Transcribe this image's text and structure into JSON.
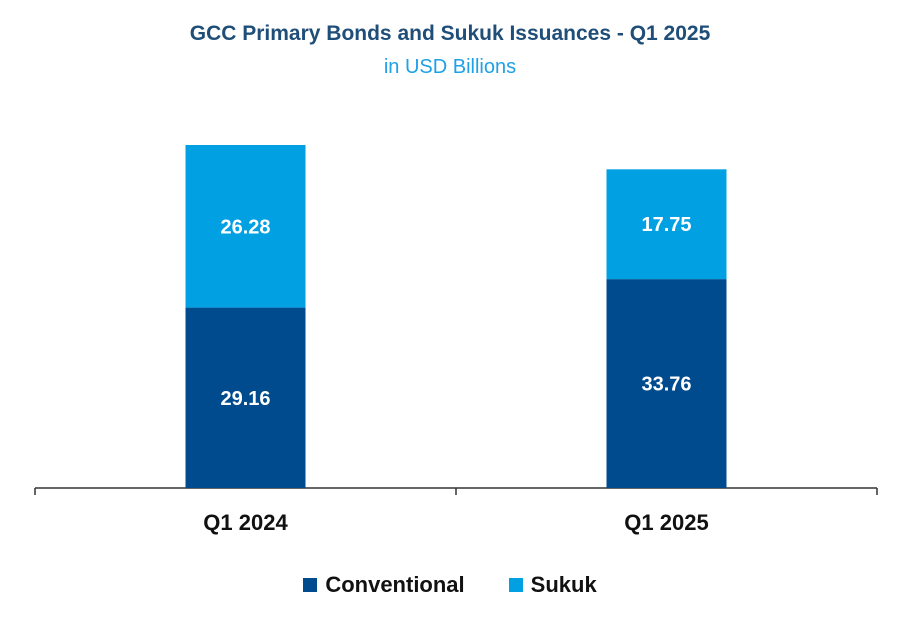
{
  "chart_data": {
    "type": "bar",
    "stacked": true,
    "title": "GCC Primary Bonds and Sukuk Issuances - Q1 2025",
    "subtitle": "in USD Billions",
    "categories": [
      "Q1 2024",
      "Q1 2025"
    ],
    "series": [
      {
        "name": "Conventional",
        "color": "#004b8d",
        "values": [
          29.16,
          33.76
        ]
      },
      {
        "name": "Sukuk",
        "color": "#00a0e3",
        "values": [
          26.28,
          17.75
        ]
      }
    ],
    "ylim": [
      0,
      56
    ],
    "grid": false,
    "legend_position": "bottom"
  }
}
